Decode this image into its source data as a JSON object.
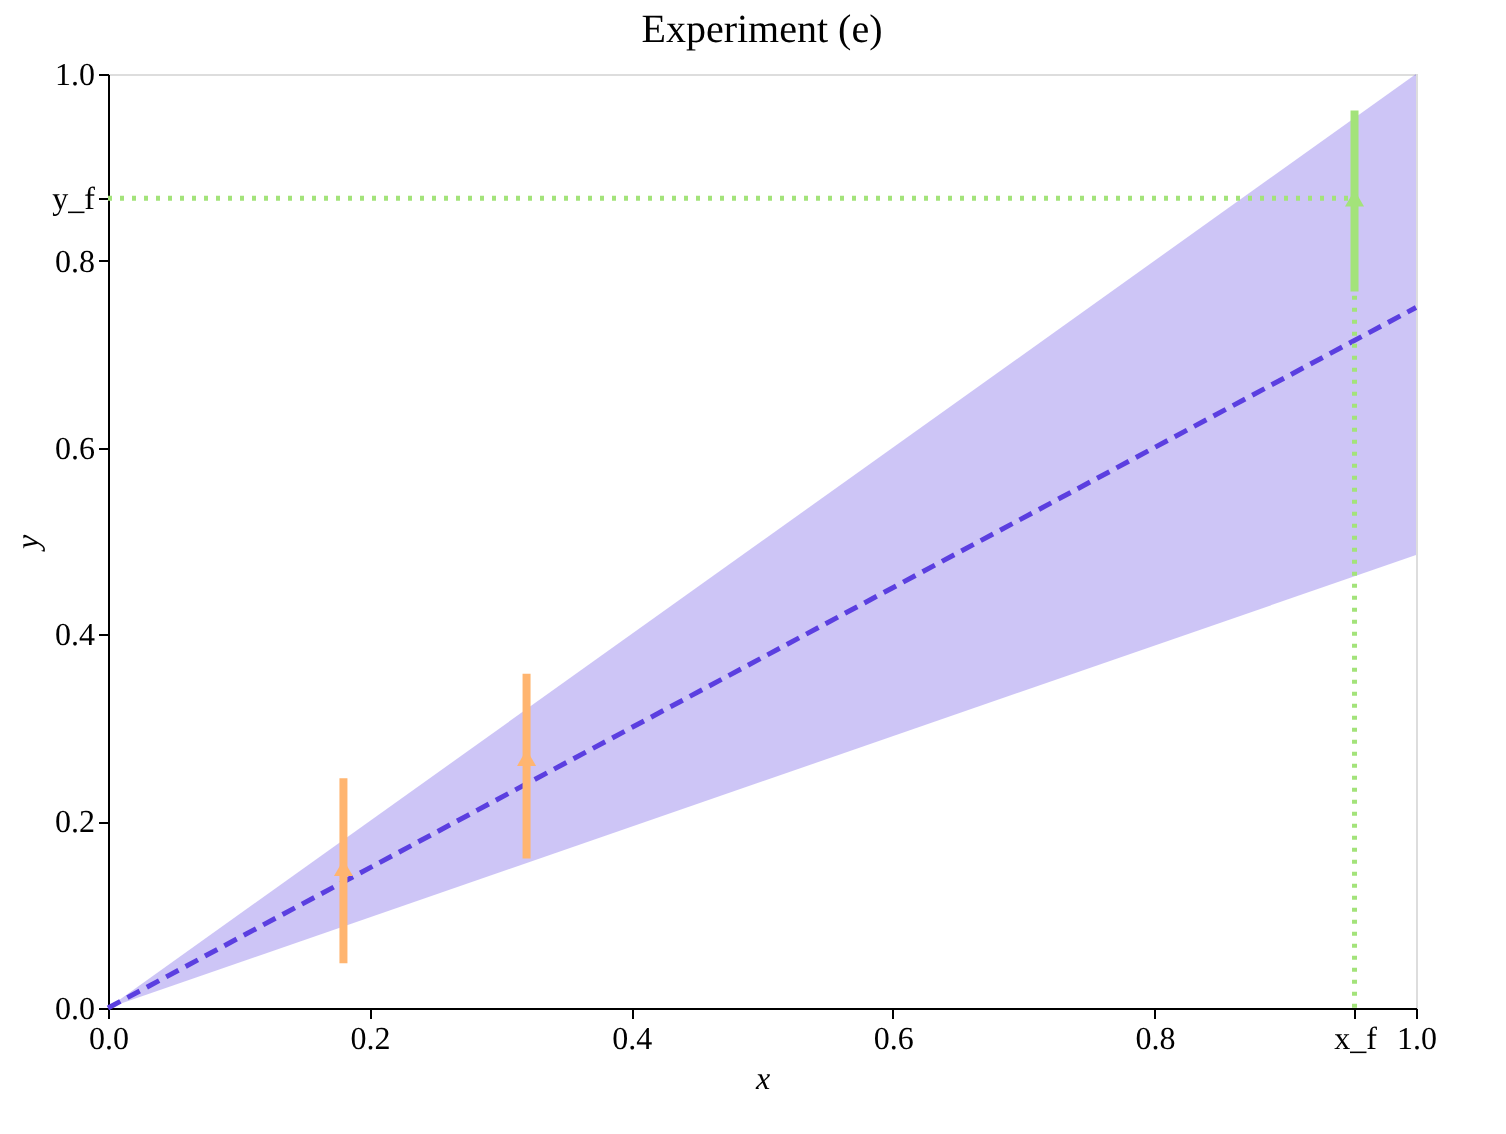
{
  "chart_data": {
    "type": "line",
    "title": "Experiment (e)",
    "xlabel": "x",
    "ylabel": "y",
    "xlim": [
      0,
      1
    ],
    "ylim": [
      0,
      1
    ],
    "xticks": [
      {
        "value": 0,
        "label": "0.0"
      },
      {
        "value": 0.2,
        "label": "0.2"
      },
      {
        "value": 0.4,
        "label": "0.4"
      },
      {
        "value": 0.6,
        "label": "0.6"
      },
      {
        "value": 0.8,
        "label": "0.8"
      },
      {
        "value": 0.953,
        "label": "x_f"
      },
      {
        "value": 1,
        "label": "1.0"
      }
    ],
    "yticks": [
      {
        "value": 0,
        "label": "0.0"
      },
      {
        "value": 0.2,
        "label": "0.2"
      },
      {
        "value": 0.4,
        "label": "0.4"
      },
      {
        "value": 0.6,
        "label": "0.6"
      },
      {
        "value": 0.8,
        "label": "0.8"
      },
      {
        "value": 0.867,
        "label": "y_f"
      },
      {
        "value": 1,
        "label": "1.0"
      }
    ],
    "grid": false,
    "series": [
      {
        "x": [
          0,
          1
        ],
        "values": [
          0,
          0.75
        ],
        "lower": [
          0,
          0.485
        ],
        "upper": [
          0,
          1.0
        ],
        "color": "#5b3fe0",
        "line_style": "dashed",
        "marker": "none"
      },
      {
        "x": [
          0,
          0.953,
          0.953
        ],
        "values": [
          0.867,
          0.867,
          0
        ],
        "color": "#a3e37a",
        "line_style": "dotted",
        "marker": "none"
      },
      {
        "type": "scatter",
        "x": [
          0.18,
          0.32
        ],
        "values": [
          0.15,
          0.268
        ],
        "errors": [
          [
            0.048,
            0.246
          ],
          [
            0.16,
            0.358
          ]
        ],
        "color": "#ffb570",
        "marker": "triangle"
      },
      {
        "type": "scatter",
        "x": [
          0.953
        ],
        "values": [
          0.867
        ],
        "errors": [
          [
            0.767,
            0.961
          ]
        ],
        "color": "#a3e37a",
        "marker": "triangle"
      }
    ]
  }
}
